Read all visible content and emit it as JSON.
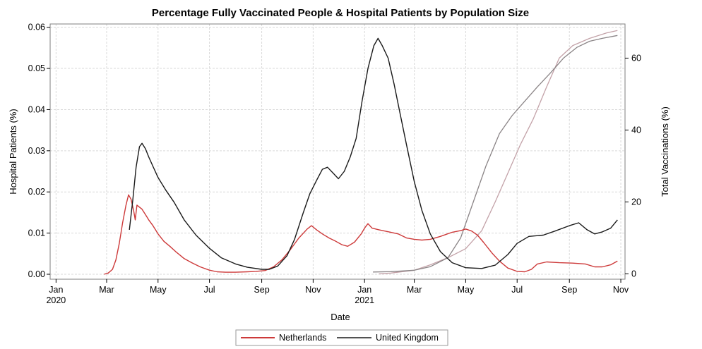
{
  "chart_data": {
    "type": "line",
    "title": "Percentage Fully Vaccinated People & Hospital Patients by Population Size",
    "xlabel": "Date",
    "ylabel": "Hospital Patients (%)",
    "y2label": "Total Vaccinations (%)",
    "x_ticks": [
      {
        "date": "2020-01-01",
        "label": "Jan",
        "year": "2020"
      },
      {
        "date": "2020-03-01",
        "label": "Mar",
        "year": ""
      },
      {
        "date": "2020-05-01",
        "label": "May",
        "year": ""
      },
      {
        "date": "2020-07-01",
        "label": "Jul",
        "year": ""
      },
      {
        "date": "2020-09-01",
        "label": "Sep",
        "year": ""
      },
      {
        "date": "2020-11-01",
        "label": "Nov",
        "year": ""
      },
      {
        "date": "2021-01-01",
        "label": "Jan",
        "year": "2021"
      },
      {
        "date": "2021-03-01",
        "label": "Mar",
        "year": ""
      },
      {
        "date": "2021-05-01",
        "label": "May",
        "year": ""
      },
      {
        "date": "2021-07-01",
        "label": "Jul",
        "year": ""
      },
      {
        "date": "2021-09-01",
        "label": "Sep",
        "year": ""
      },
      {
        "date": "2021-11-01",
        "label": "Nov",
        "year": ""
      }
    ],
    "xlim": [
      "2019-12-25",
      "2021-11-06"
    ],
    "ylim": [
      -0.0012,
      0.0608
    ],
    "yticks": [
      "0.00",
      "0.01",
      "0.02",
      "0.03",
      "0.04",
      "0.05",
      "0.06"
    ],
    "y2lim": [
      -1.5,
      69.5
    ],
    "y2ticks": [
      0,
      20,
      40,
      60
    ],
    "grid": true,
    "legend_position": "bottom-center",
    "series": [
      {
        "name": "Netherlands",
        "axis": "left",
        "color": "#cd3a3a",
        "points": [
          [
            "2020-02-27",
            0.0
          ],
          [
            "2020-03-03",
            0.0003
          ],
          [
            "2020-03-08",
            0.0012
          ],
          [
            "2020-03-12",
            0.0035
          ],
          [
            "2020-03-16",
            0.0075
          ],
          [
            "2020-03-20",
            0.0125
          ],
          [
            "2020-03-24",
            0.0168
          ],
          [
            "2020-03-27",
            0.0193
          ],
          [
            "2020-03-30",
            0.0182
          ],
          [
            "2020-04-02",
            0.0155
          ],
          [
            "2020-04-04",
            0.0132
          ],
          [
            "2020-04-06",
            0.0168
          ],
          [
            "2020-04-09",
            0.0163
          ],
          [
            "2020-04-12",
            0.0158
          ],
          [
            "2020-04-16",
            0.0145
          ],
          [
            "2020-04-20",
            0.0132
          ],
          [
            "2020-04-25",
            0.0118
          ],
          [
            "2020-05-01",
            0.0098
          ],
          [
            "2020-05-08",
            0.008
          ],
          [
            "2020-05-15",
            0.0068
          ],
          [
            "2020-05-22",
            0.0055
          ],
          [
            "2020-06-01",
            0.0038
          ],
          [
            "2020-06-10",
            0.0028
          ],
          [
            "2020-06-20",
            0.0018
          ],
          [
            "2020-07-01",
            0.001
          ],
          [
            "2020-07-10",
            0.0006
          ],
          [
            "2020-07-20",
            0.0005
          ],
          [
            "2020-08-01",
            0.0005
          ],
          [
            "2020-08-15",
            0.0006
          ],
          [
            "2020-08-25",
            0.0007
          ],
          [
            "2020-09-05",
            0.0009
          ],
          [
            "2020-09-15",
            0.0018
          ],
          [
            "2020-09-25",
            0.0035
          ],
          [
            "2020-10-05",
            0.006
          ],
          [
            "2020-10-15",
            0.0088
          ],
          [
            "2020-10-25",
            0.011
          ],
          [
            "2020-10-30",
            0.0118
          ],
          [
            "2020-11-05",
            0.0108
          ],
          [
            "2020-11-12",
            0.0098
          ],
          [
            "2020-11-20",
            0.0088
          ],
          [
            "2020-11-28",
            0.008
          ],
          [
            "2020-12-05",
            0.0072
          ],
          [
            "2020-12-12",
            0.0068
          ],
          [
            "2020-12-20",
            0.0078
          ],
          [
            "2020-12-28",
            0.0098
          ],
          [
            "2021-01-01",
            0.0112
          ],
          [
            "2021-01-05",
            0.0123
          ],
          [
            "2021-01-10",
            0.0112
          ],
          [
            "2021-01-18",
            0.0108
          ],
          [
            "2021-01-25",
            0.0105
          ],
          [
            "2021-02-01",
            0.0102
          ],
          [
            "2021-02-10",
            0.0098
          ],
          [
            "2021-02-20",
            0.0088
          ],
          [
            "2021-03-01",
            0.0085
          ],
          [
            "2021-03-10",
            0.0083
          ],
          [
            "2021-03-20",
            0.0085
          ],
          [
            "2021-04-01",
            0.0092
          ],
          [
            "2021-04-15",
            0.0102
          ],
          [
            "2021-04-25",
            0.0106
          ],
          [
            "2021-05-01",
            0.011
          ],
          [
            "2021-05-08",
            0.0105
          ],
          [
            "2021-05-15",
            0.0095
          ],
          [
            "2021-05-22",
            0.0078
          ],
          [
            "2021-06-01",
            0.0052
          ],
          [
            "2021-06-10",
            0.0032
          ],
          [
            "2021-06-20",
            0.0015
          ],
          [
            "2021-07-01",
            0.0007
          ],
          [
            "2021-07-10",
            0.0006
          ],
          [
            "2021-07-18",
            0.0012
          ],
          [
            "2021-07-25",
            0.0025
          ],
          [
            "2021-08-05",
            0.003
          ],
          [
            "2021-08-20",
            0.0028
          ],
          [
            "2021-09-05",
            0.0027
          ],
          [
            "2021-09-20",
            0.0025
          ],
          [
            "2021-10-01",
            0.0018
          ],
          [
            "2021-10-10",
            0.0018
          ],
          [
            "2021-10-20",
            0.0023
          ],
          [
            "2021-10-28",
            0.0032
          ]
        ]
      },
      {
        "name": "United Kingdom",
        "axis": "left",
        "color": "#1a1a1a",
        "points": [
          [
            "2020-03-28",
            0.0108
          ],
          [
            "2020-04-01",
            0.018
          ],
          [
            "2020-04-05",
            0.026
          ],
          [
            "2020-04-09",
            0.031
          ],
          [
            "2020-04-12",
            0.0318
          ],
          [
            "2020-04-16",
            0.0305
          ],
          [
            "2020-04-20",
            0.0285
          ],
          [
            "2020-04-25",
            0.0262
          ],
          [
            "2020-05-01",
            0.0235
          ],
          [
            "2020-05-10",
            0.0205
          ],
          [
            "2020-05-20",
            0.0175
          ],
          [
            "2020-06-01",
            0.0132
          ],
          [
            "2020-06-15",
            0.0095
          ],
          [
            "2020-07-01",
            0.0063
          ],
          [
            "2020-07-15",
            0.004
          ],
          [
            "2020-08-01",
            0.0025
          ],
          [
            "2020-08-15",
            0.0017
          ],
          [
            "2020-09-01",
            0.0012
          ],
          [
            "2020-09-10",
            0.0012
          ],
          [
            "2020-09-20",
            0.002
          ],
          [
            "2020-10-01",
            0.0045
          ],
          [
            "2020-10-10",
            0.0085
          ],
          [
            "2020-10-20",
            0.0148
          ],
          [
            "2020-10-28",
            0.0195
          ],
          [
            "2020-11-05",
            0.0228
          ],
          [
            "2020-11-12",
            0.0255
          ],
          [
            "2020-11-18",
            0.026
          ],
          [
            "2020-11-25",
            0.0245
          ],
          [
            "2020-12-01",
            0.0232
          ],
          [
            "2020-12-08",
            0.025
          ],
          [
            "2020-12-15",
            0.0285
          ],
          [
            "2020-12-22",
            0.033
          ],
          [
            "2020-12-29",
            0.042
          ],
          [
            "2021-01-05",
            0.05
          ],
          [
            "2021-01-12",
            0.0555
          ],
          [
            "2021-01-17",
            0.0573
          ],
          [
            "2021-01-22",
            0.0555
          ],
          [
            "2021-01-29",
            0.0525
          ],
          [
            "2021-02-05",
            0.0462
          ],
          [
            "2021-02-12",
            0.0392
          ],
          [
            "2021-02-20",
            0.0312
          ],
          [
            "2021-03-01",
            0.0225
          ],
          [
            "2021-03-10",
            0.0155
          ],
          [
            "2021-03-20",
            0.0098
          ],
          [
            "2021-04-01",
            0.0055
          ],
          [
            "2021-04-15",
            0.0028
          ],
          [
            "2021-05-01",
            0.0016
          ],
          [
            "2021-05-20",
            0.0014
          ],
          [
            "2021-06-05",
            0.0022
          ],
          [
            "2021-06-20",
            0.0048
          ],
          [
            "2021-07-01",
            0.0075
          ],
          [
            "2021-07-15",
            0.0092
          ],
          [
            "2021-08-01",
            0.0095
          ],
          [
            "2021-08-15",
            0.0105
          ],
          [
            "2021-09-01",
            0.0118
          ],
          [
            "2021-09-12",
            0.0125
          ],
          [
            "2021-09-22",
            0.0108
          ],
          [
            "2021-10-01",
            0.0098
          ],
          [
            "2021-10-10",
            0.0103
          ],
          [
            "2021-10-20",
            0.0112
          ],
          [
            "2021-10-28",
            0.0132
          ]
        ]
      },
      {
        "name": "",
        "axis": "right",
        "color": "#c3a2a8",
        "points": [
          [
            "2021-01-18",
            0.0
          ],
          [
            "2021-02-01",
            0.2
          ],
          [
            "2021-03-01",
            1.0
          ],
          [
            "2021-03-20",
            2.5
          ],
          [
            "2021-04-10",
            4.5
          ],
          [
            "2021-05-01",
            7.0
          ],
          [
            "2021-05-20",
            12.0
          ],
          [
            "2021-06-05",
            20.0
          ],
          [
            "2021-06-20",
            28.0
          ],
          [
            "2021-07-05",
            36.0
          ],
          [
            "2021-07-20",
            43.0
          ],
          [
            "2021-08-05",
            52.0
          ],
          [
            "2021-08-20",
            60.0
          ],
          [
            "2021-09-05",
            63.5
          ],
          [
            "2021-09-25",
            65.5
          ],
          [
            "2021-10-15",
            67.0
          ],
          [
            "2021-10-28",
            67.7
          ]
        ]
      },
      {
        "name": "",
        "axis": "right",
        "color": "#8a8486",
        "points": [
          [
            "2021-01-11",
            0.5
          ],
          [
            "2021-02-01",
            0.6
          ],
          [
            "2021-03-01",
            1.0
          ],
          [
            "2021-03-20",
            2.0
          ],
          [
            "2021-04-10",
            4.5
          ],
          [
            "2021-04-25",
            10.0
          ],
          [
            "2021-05-10",
            20.0
          ],
          [
            "2021-05-25",
            30.0
          ],
          [
            "2021-06-10",
            39.0
          ],
          [
            "2021-06-25",
            44.0
          ],
          [
            "2021-07-10",
            48.0
          ],
          [
            "2021-07-25",
            52.0
          ],
          [
            "2021-08-10",
            56.0
          ],
          [
            "2021-08-25",
            60.0
          ],
          [
            "2021-09-10",
            63.0
          ],
          [
            "2021-09-25",
            64.7
          ],
          [
            "2021-10-10",
            65.5
          ],
          [
            "2021-10-28",
            66.3
          ]
        ]
      }
    ]
  }
}
